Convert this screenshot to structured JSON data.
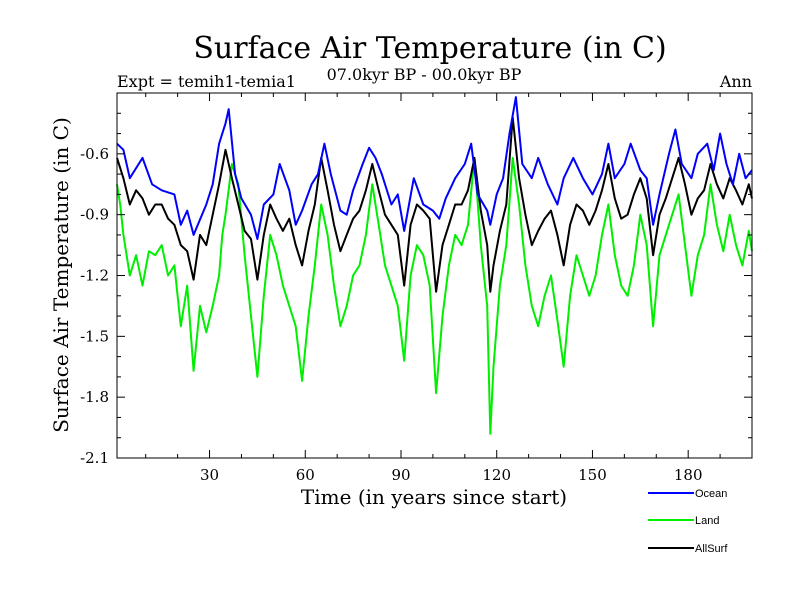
{
  "chart_data": {
    "type": "line",
    "title": "Surface Air Temperature (in C)",
    "subtitle_left": "Expt = temih1-temia1",
    "subtitle_center": "07.0kyr BP - 00.0kyr BP",
    "subtitle_right": "Ann",
    "xlabel": "Time (in years since start)",
    "ylabel": "Surface Air Temperature (in C)",
    "xlim": [
      1,
      200
    ],
    "ylim": [
      -2.1,
      -0.3
    ],
    "xticks": [
      30,
      60,
      90,
      120,
      150,
      180
    ],
    "yticks": [
      -2.1,
      -1.8,
      -1.5,
      -1.2,
      -0.9,
      -0.6
    ],
    "ytick_labels": [
      "-2.1",
      "-1.8",
      "-1.5",
      "-1.2",
      "-0.9",
      "-0.6"
    ],
    "series": [
      {
        "name": "Ocean",
        "color": "#0000ff",
        "anchors": [
          [
            1,
            -0.55
          ],
          [
            3,
            -0.58
          ],
          [
            5,
            -0.72
          ],
          [
            9,
            -0.62
          ],
          [
            12,
            -0.75
          ],
          [
            15,
            -0.78
          ],
          [
            19,
            -0.8
          ],
          [
            21,
            -0.95
          ],
          [
            23,
            -0.88
          ],
          [
            25,
            -1.0
          ],
          [
            29,
            -0.85
          ],
          [
            31,
            -0.75
          ],
          [
            33,
            -0.55
          ],
          [
            35,
            -0.45
          ],
          [
            36,
            -0.38
          ],
          [
            38,
            -0.7
          ],
          [
            40,
            -0.82
          ],
          [
            43,
            -0.9
          ],
          [
            45,
            -1.02
          ],
          [
            47,
            -0.85
          ],
          [
            50,
            -0.8
          ],
          [
            52,
            -0.65
          ],
          [
            55,
            -0.78
          ],
          [
            57,
            -0.95
          ],
          [
            59,
            -0.88
          ],
          [
            62,
            -0.75
          ],
          [
            64,
            -0.7
          ],
          [
            66,
            -0.55
          ],
          [
            68,
            -0.7
          ],
          [
            71,
            -0.88
          ],
          [
            73,
            -0.9
          ],
          [
            75,
            -0.78
          ],
          [
            78,
            -0.65
          ],
          [
            80,
            -0.57
          ],
          [
            82,
            -0.62
          ],
          [
            84,
            -0.7
          ],
          [
            87,
            -0.85
          ],
          [
            89,
            -0.8
          ],
          [
            91,
            -0.98
          ],
          [
            94,
            -0.72
          ],
          [
            97,
            -0.85
          ],
          [
            100,
            -0.88
          ],
          [
            102,
            -0.92
          ],
          [
            104,
            -0.82
          ],
          [
            107,
            -0.72
          ],
          [
            110,
            -0.65
          ],
          [
            112,
            -0.55
          ],
          [
            114,
            -0.8
          ],
          [
            117,
            -0.88
          ],
          [
            118,
            -0.95
          ],
          [
            120,
            -0.8
          ],
          [
            122,
            -0.72
          ],
          [
            124,
            -0.5
          ],
          [
            126,
            -0.32
          ],
          [
            128,
            -0.65
          ],
          [
            131,
            -0.72
          ],
          [
            133,
            -0.62
          ],
          [
            136,
            -0.75
          ],
          [
            139,
            -0.85
          ],
          [
            141,
            -0.72
          ],
          [
            144,
            -0.62
          ],
          [
            147,
            -0.72
          ],
          [
            150,
            -0.8
          ],
          [
            153,
            -0.7
          ],
          [
            155,
            -0.55
          ],
          [
            157,
            -0.72
          ],
          [
            160,
            -0.65
          ],
          [
            162,
            -0.55
          ],
          [
            165,
            -0.68
          ],
          [
            167,
            -0.72
          ],
          [
            169,
            -0.95
          ],
          [
            171,
            -0.8
          ],
          [
            174,
            -0.6
          ],
          [
            176,
            -0.48
          ],
          [
            178,
            -0.65
          ],
          [
            181,
            -0.72
          ],
          [
            183,
            -0.6
          ],
          [
            186,
            -0.55
          ],
          [
            188,
            -0.68
          ],
          [
            190,
            -0.5
          ],
          [
            192,
            -0.65
          ],
          [
            194,
            -0.75
          ],
          [
            196,
            -0.6
          ],
          [
            198,
            -0.72
          ],
          [
            200,
            -0.68
          ]
        ]
      },
      {
        "name": "Land",
        "color": "#00ee00",
        "anchors": [
          [
            1,
            -0.75
          ],
          [
            2,
            -0.85
          ],
          [
            3,
            -1.0
          ],
          [
            5,
            -1.2
          ],
          [
            7,
            -1.1
          ],
          [
            9,
            -1.25
          ],
          [
            11,
            -1.08
          ],
          [
            13,
            -1.1
          ],
          [
            15,
            -1.05
          ],
          [
            17,
            -1.2
          ],
          [
            19,
            -1.15
          ],
          [
            21,
            -1.45
          ],
          [
            23,
            -1.25
          ],
          [
            25,
            -1.67
          ],
          [
            27,
            -1.35
          ],
          [
            29,
            -1.48
          ],
          [
            31,
            -1.35
          ],
          [
            33,
            -1.2
          ],
          [
            34,
            -1.0
          ],
          [
            35,
            -0.9
          ],
          [
            37,
            -0.65
          ],
          [
            39,
            -0.75
          ],
          [
            41,
            -1.1
          ],
          [
            43,
            -1.4
          ],
          [
            45,
            -1.7
          ],
          [
            47,
            -1.3
          ],
          [
            49,
            -1.0
          ],
          [
            51,
            -1.1
          ],
          [
            53,
            -1.25
          ],
          [
            55,
            -1.35
          ],
          [
            57,
            -1.45
          ],
          [
            59,
            -1.72
          ],
          [
            61,
            -1.4
          ],
          [
            63,
            -1.15
          ],
          [
            65,
            -0.85
          ],
          [
            67,
            -1.0
          ],
          [
            69,
            -1.25
          ],
          [
            71,
            -1.45
          ],
          [
            73,
            -1.35
          ],
          [
            75,
            -1.2
          ],
          [
            77,
            -1.15
          ],
          [
            79,
            -1.0
          ],
          [
            81,
            -0.75
          ],
          [
            83,
            -0.95
          ],
          [
            85,
            -1.15
          ],
          [
            87,
            -1.25
          ],
          [
            89,
            -1.35
          ],
          [
            91,
            -1.62
          ],
          [
            93,
            -1.2
          ],
          [
            95,
            -1.05
          ],
          [
            97,
            -1.1
          ],
          [
            99,
            -1.25
          ],
          [
            101,
            -1.78
          ],
          [
            103,
            -1.4
          ],
          [
            105,
            -1.15
          ],
          [
            107,
            -1.0
          ],
          [
            109,
            -1.05
          ],
          [
            111,
            -0.95
          ],
          [
            113,
            -0.62
          ],
          [
            115,
            -1.05
          ],
          [
            117,
            -1.35
          ],
          [
            118,
            -1.98
          ],
          [
            119,
            -1.65
          ],
          [
            121,
            -1.25
          ],
          [
            123,
            -1.05
          ],
          [
            125,
            -0.62
          ],
          [
            127,
            -0.85
          ],
          [
            129,
            -1.15
          ],
          [
            131,
            -1.35
          ],
          [
            133,
            -1.45
          ],
          [
            135,
            -1.3
          ],
          [
            137,
            -1.2
          ],
          [
            139,
            -1.42
          ],
          [
            141,
            -1.65
          ],
          [
            143,
            -1.3
          ],
          [
            145,
            -1.1
          ],
          [
            147,
            -1.2
          ],
          [
            149,
            -1.3
          ],
          [
            151,
            -1.2
          ],
          [
            153,
            -1.0
          ],
          [
            155,
            -0.85
          ],
          [
            157,
            -1.1
          ],
          [
            159,
            -1.25
          ],
          [
            161,
            -1.3
          ],
          [
            163,
            -1.15
          ],
          [
            165,
            -0.9
          ],
          [
            167,
            -1.05
          ],
          [
            169,
            -1.45
          ],
          [
            171,
            -1.1
          ],
          [
            173,
            -1.0
          ],
          [
            175,
            -0.9
          ],
          [
            177,
            -0.8
          ],
          [
            179,
            -1.05
          ],
          [
            181,
            -1.3
          ],
          [
            183,
            -1.1
          ],
          [
            185,
            -1.0
          ],
          [
            187,
            -0.75
          ],
          [
            189,
            -0.95
          ],
          [
            191,
            -1.08
          ],
          [
            193,
            -0.9
          ],
          [
            195,
            -1.05
          ],
          [
            197,
            -1.15
          ],
          [
            199,
            -0.98
          ],
          [
            200,
            -1.08
          ]
        ]
      },
      {
        "name": "AllSurf",
        "color": "#000000",
        "anchors": [
          [
            1,
            -0.62
          ],
          [
            3,
            -0.72
          ],
          [
            5,
            -0.85
          ],
          [
            7,
            -0.78
          ],
          [
            9,
            -0.82
          ],
          [
            11,
            -0.9
          ],
          [
            13,
            -0.85
          ],
          [
            15,
            -0.85
          ],
          [
            17,
            -0.92
          ],
          [
            19,
            -0.95
          ],
          [
            21,
            -1.05
          ],
          [
            23,
            -1.08
          ],
          [
            25,
            -1.22
          ],
          [
            27,
            -1.0
          ],
          [
            29,
            -1.05
          ],
          [
            31,
            -0.9
          ],
          [
            33,
            -0.75
          ],
          [
            35,
            -0.58
          ],
          [
            37,
            -0.72
          ],
          [
            39,
            -0.85
          ],
          [
            41,
            -0.98
          ],
          [
            43,
            -1.02
          ],
          [
            45,
            -1.22
          ],
          [
            47,
            -1.0
          ],
          [
            49,
            -0.85
          ],
          [
            51,
            -0.92
          ],
          [
            53,
            -0.98
          ],
          [
            55,
            -0.92
          ],
          [
            57,
            -1.05
          ],
          [
            59,
            -1.15
          ],
          [
            61,
            -0.98
          ],
          [
            63,
            -0.85
          ],
          [
            65,
            -0.62
          ],
          [
            67,
            -0.78
          ],
          [
            69,
            -0.95
          ],
          [
            71,
            -1.08
          ],
          [
            73,
            -1.0
          ],
          [
            75,
            -0.92
          ],
          [
            77,
            -0.88
          ],
          [
            79,
            -0.78
          ],
          [
            81,
            -0.65
          ],
          [
            83,
            -0.78
          ],
          [
            85,
            -0.9
          ],
          [
            87,
            -0.95
          ],
          [
            89,
            -1.0
          ],
          [
            91,
            -1.25
          ],
          [
            93,
            -0.95
          ],
          [
            95,
            -0.85
          ],
          [
            97,
            -0.88
          ],
          [
            99,
            -0.92
          ],
          [
            101,
            -1.28
          ],
          [
            103,
            -1.05
          ],
          [
            105,
            -0.95
          ],
          [
            107,
            -0.85
          ],
          [
            109,
            -0.85
          ],
          [
            111,
            -0.78
          ],
          [
            113,
            -0.62
          ],
          [
            115,
            -0.88
          ],
          [
            117,
            -1.05
          ],
          [
            118,
            -1.28
          ],
          [
            119,
            -1.15
          ],
          [
            121,
            -0.98
          ],
          [
            123,
            -0.85
          ],
          [
            125,
            -0.42
          ],
          [
            127,
            -0.72
          ],
          [
            129,
            -0.9
          ],
          [
            131,
            -1.05
          ],
          [
            133,
            -0.98
          ],
          [
            135,
            -0.92
          ],
          [
            137,
            -0.88
          ],
          [
            139,
            -1.0
          ],
          [
            141,
            -1.15
          ],
          [
            143,
            -0.95
          ],
          [
            145,
            -0.85
          ],
          [
            147,
            -0.88
          ],
          [
            149,
            -0.95
          ],
          [
            151,
            -0.88
          ],
          [
            153,
            -0.78
          ],
          [
            155,
            -0.65
          ],
          [
            157,
            -0.82
          ],
          [
            159,
            -0.92
          ],
          [
            161,
            -0.9
          ],
          [
            163,
            -0.8
          ],
          [
            165,
            -0.72
          ],
          [
            167,
            -0.82
          ],
          [
            169,
            -1.1
          ],
          [
            171,
            -0.9
          ],
          [
            173,
            -0.82
          ],
          [
            175,
            -0.72
          ],
          [
            177,
            -0.62
          ],
          [
            179,
            -0.75
          ],
          [
            181,
            -0.9
          ],
          [
            183,
            -0.82
          ],
          [
            185,
            -0.78
          ],
          [
            187,
            -0.65
          ],
          [
            189,
            -0.75
          ],
          [
            191,
            -0.82
          ],
          [
            193,
            -0.72
          ],
          [
            195,
            -0.78
          ],
          [
            197,
            -0.85
          ],
          [
            199,
            -0.75
          ],
          [
            200,
            -0.82
          ]
        ]
      }
    ],
    "legend": {
      "placement": "bottom-right",
      "entries": [
        "Ocean",
        "Land",
        "AllSurf"
      ]
    }
  }
}
